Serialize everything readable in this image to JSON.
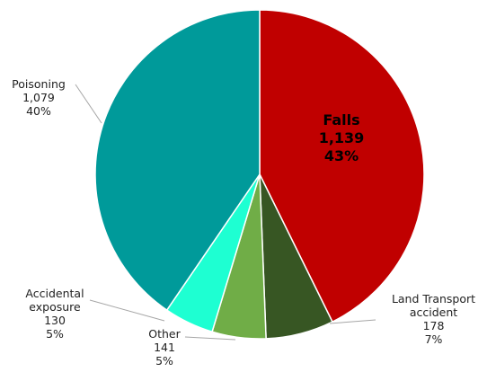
{
  "chart_data": {
    "type": "pie",
    "categories": [
      "Falls",
      "Land Transport accident",
      "Other",
      "Accidental exposure",
      "Poisoning"
    ],
    "values": [
      1139,
      178,
      141,
      130,
      1079
    ],
    "value_labels": [
      "1,139",
      "178",
      "141",
      "130",
      "1,079"
    ],
    "percent_labels": [
      "43%",
      "7%",
      "5%",
      "5%",
      "40%"
    ],
    "colors": [
      "#c00000",
      "#375623",
      "#70ad47",
      "#1effd2",
      "#009a9a"
    ]
  }
}
